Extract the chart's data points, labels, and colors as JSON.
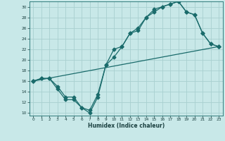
{
  "title": "",
  "xlabel": "Humidex (Indice chaleur)",
  "ylabel": "",
  "bg_color": "#c8e8e8",
  "grid_color": "#a8d0d0",
  "line_color": "#1a6b6b",
  "xlim": [
    -0.5,
    23.5
  ],
  "ylim": [
    9.5,
    31
  ],
  "xticks": [
    0,
    1,
    2,
    3,
    4,
    5,
    6,
    7,
    8,
    9,
    10,
    11,
    12,
    13,
    14,
    15,
    16,
    17,
    18,
    19,
    20,
    21,
    22,
    23
  ],
  "yticks": [
    10,
    12,
    14,
    16,
    18,
    20,
    22,
    24,
    26,
    28,
    30
  ],
  "line1_x": [
    0,
    1,
    2,
    3,
    4,
    5,
    6,
    7,
    8,
    9,
    10,
    11,
    12,
    13,
    14,
    15,
    16,
    17,
    18,
    19,
    20,
    21,
    22,
    23
  ],
  "line1_y": [
    16,
    16.5,
    16.5,
    15,
    13,
    13,
    11,
    10.5,
    13.5,
    19,
    20.5,
    22.5,
    25,
    25.5,
    28,
    29.5,
    30,
    30.5,
    31,
    29,
    28.5,
    25,
    23,
    22.5
  ],
  "line2_x": [
    0,
    1,
    2,
    3,
    4,
    5,
    6,
    7,
    8,
    9,
    10,
    11,
    12,
    13,
    14,
    15,
    16,
    17,
    18,
    19,
    20,
    21,
    22,
    23
  ],
  "line2_y": [
    16,
    16.5,
    16.5,
    14.5,
    12.5,
    12.5,
    11,
    10,
    13,
    19,
    22,
    22.5,
    25,
    26,
    28,
    29,
    30,
    30.5,
    31,
    29,
    28.5,
    25,
    23,
    22.5
  ],
  "line3_x": [
    0,
    23
  ],
  "line3_y": [
    16,
    22.5
  ]
}
